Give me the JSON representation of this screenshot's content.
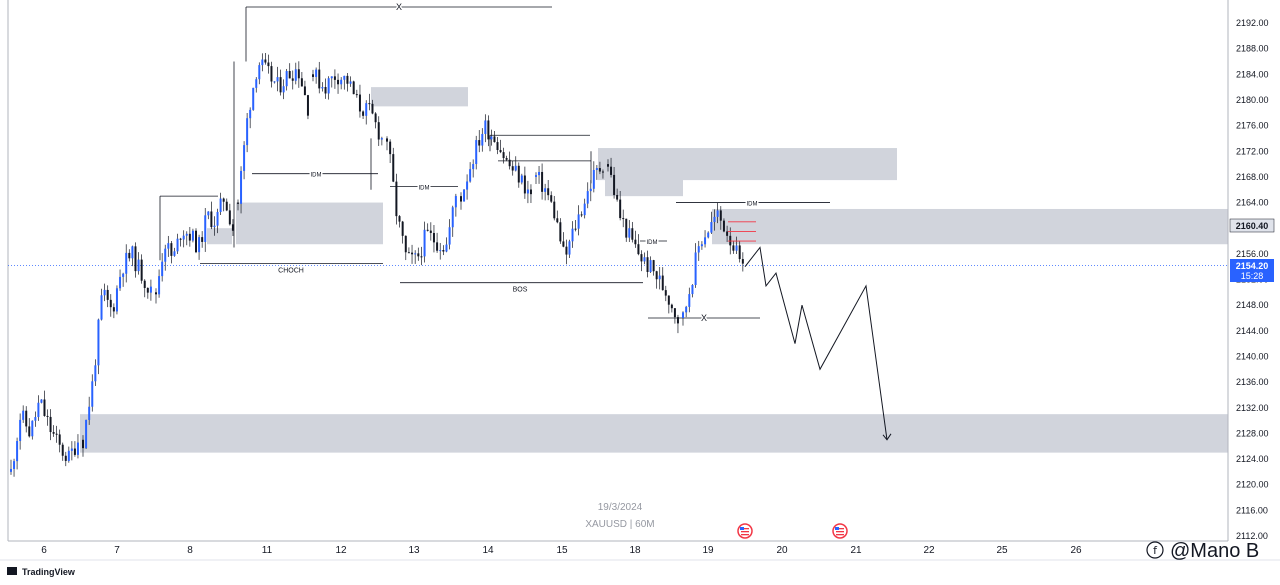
{
  "branding": {
    "logo_text": "TradingView",
    "signature": "@Mano B",
    "signature_icon": "circled-f-icon"
  },
  "watermark": {
    "date": "19/3/2024",
    "symbol": "XAUUSD | 60M"
  },
  "price_tags": {
    "upper": "2160.40",
    "current_price": "2154.20",
    "current_countdown": "15:28"
  },
  "colors": {
    "candle": "#2962ff",
    "zone": "#d1d4dc",
    "zone_dark_edge": "#9aa0ab",
    "price_line": "#2962ff",
    "red_marks": "#f23645",
    "grid": "#e9ebf0",
    "axis": "#131722"
  },
  "annotations": {
    "choch": "CHOCH",
    "bos": "BOS",
    "idm": "IDM",
    "x": "X"
  },
  "chart_data": {
    "type": "candlestick",
    "symbol": "XAUUSD",
    "timeframe": "60M",
    "y_ticks": [
      "2192.00",
      "2188.00",
      "2184.00",
      "2180.00",
      "2176.00",
      "2172.00",
      "2168.00",
      "2164.00",
      "2160.00",
      "2156.00",
      "2152.00",
      "2148.00",
      "2144.00",
      "2140.00",
      "2136.00",
      "2132.00",
      "2128.00",
      "2124.00",
      "2120.00",
      "2116.00",
      "2112.00"
    ],
    "ylim": [
      2111,
      2195
    ],
    "x_ticks": [
      "6",
      "7",
      "8",
      "11",
      "12",
      "13",
      "14",
      "15",
      "18",
      "19",
      "20",
      "21",
      "22",
      "25",
      "26"
    ],
    "price_path": [
      [
        2122,
        2131,
        2128,
        2133,
        2129,
        2126,
        2124,
        2127
      ],
      [
        2127,
        2136,
        2150,
        2147,
        2154,
        2156,
        2153,
        2150
      ],
      [
        2150,
        2158,
        2155,
        2160,
        2159,
        2157,
        2162,
        2161,
        2165,
        2160
      ],
      [
        2164,
        2178,
        2186,
        2184,
        2182,
        2184,
        2185,
        2179
      ],
      [
        2184,
        2182,
        2184,
        2183,
        2179,
        2178,
        2174
      ],
      [
        2174,
        2162,
        2155,
        2155,
        2159,
        2158,
        2157,
        2165
      ],
      [
        2165,
        2171,
        2176,
        2174,
        2170,
        2168,
        2165
      ],
      [
        2168,
        2166,
        2162,
        2155,
        2160,
        2164,
        2168,
        2170
      ],
      [
        2170,
        2162,
        2158,
        2155,
        2153,
        2150,
        2146
      ],
      [
        2146,
        2152,
        2158,
        2160,
        2162,
        2160,
        2157,
        2153
      ]
    ],
    "projection": [
      2154,
      2157,
      2151,
      2153,
      2142,
      2148,
      2138,
      2151,
      2127
    ],
    "zones": [
      {
        "name": "discount-demand-zone",
        "top": 2131,
        "bottom": 2125
      },
      {
        "name": "supply-zone-near-current",
        "top": 2163,
        "bottom": 2157.5
      },
      {
        "name": "supply-zone-main",
        "top": 2172.5,
        "bottom": 2167.5
      },
      {
        "name": "supply-zone-small",
        "top": 2168,
        "bottom": 2165
      },
      {
        "name": "demand-zone-left",
        "top": 2164,
        "bottom": 2157.5
      },
      {
        "name": "supply-zone-top",
        "top": 2182,
        "bottom": 2179
      },
      {
        "name": "demand-zone-tiny",
        "top": 2160,
        "bottom": 2157.5
      }
    ],
    "levels": [
      {
        "name": "choch-level",
        "price": 2154.5,
        "label": "CHOCH"
      },
      {
        "name": "bos-level",
        "price": 2151.5,
        "label": "BOS"
      },
      {
        "name": "idm-level-1",
        "price": 2168.5,
        "label": "IDM"
      },
      {
        "name": "idm-level-2",
        "price": 2166.5,
        "label": "IDM"
      },
      {
        "name": "idm-level-3",
        "price": 2164,
        "label": "IDM"
      },
      {
        "name": "idm-level-4",
        "price": 2158,
        "label": "IDM"
      },
      {
        "name": "x-level-top",
        "price": 2194.5,
        "label": "X"
      },
      {
        "name": "x-level-low",
        "price": 2146,
        "label": "X"
      },
      {
        "name": "swing-high-level-1",
        "price": 2174.5
      },
      {
        "name": "swing-high-level-2",
        "price": 2170.5
      },
      {
        "name": "range-line-left",
        "price": 2165
      }
    ],
    "current_price": 2154.2
  }
}
